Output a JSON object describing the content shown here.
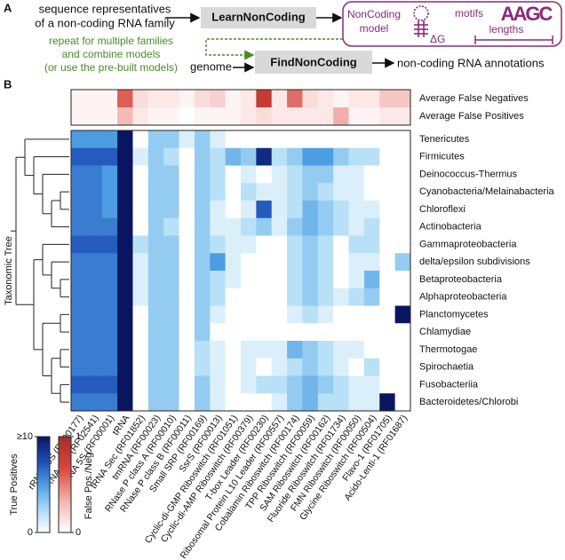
{
  "diagram": {
    "panel_a": "A",
    "panel_b": "B",
    "input_text": [
      "sequence representatives",
      "of a non-coding RNA family"
    ],
    "learn_box": "LearnNonCoding",
    "model_text": [
      "NonCoding",
      "model"
    ],
    "delta_g": "ΔG",
    "motifs": "motifs",
    "motif_letters": "AAGC",
    "lengths": "lengths",
    "repeat_text": [
      "repeat for multiple families",
      "and combine models",
      "(or use the pre-built models)"
    ],
    "genome": "genome",
    "find_box": "FindNonCoding",
    "output_text": "non-coding RNA annotations"
  },
  "chart_data": {
    "type": "heatmap",
    "y_axis_label": "Taxonomic Tree",
    "columns": [
      "rRNA 16S (RF00177)",
      "rRNA 23S (RF02541)",
      "rRNA 5S (RF00001)",
      "tRNA",
      "tRNA Sec (RF01852)",
      "tmRNA (RF00023)",
      "RNase P class A (RF00010)",
      "RNase P class B (RF00011)",
      "Small SRP (RF00169)",
      "SsrS (RF00013)",
      "Cyclic-di-GMP Riboswitch (RF01051)",
      "Cyclic-di-AMP Riboswitch (RF00379)",
      "T-box Leader (RF00230)",
      "Ribosomal Protein L10 Leader (RF00557)",
      "Cobalamin Riboswitch (RF00174)",
      "TPP Riboswitch (RF00059)",
      "SAM Riboswitch (RF00162)",
      "Fluoride Riboswitch (RF01734)",
      "FMN Riboswitch (RF00050)",
      "Glycine Riboswitch (RF00504)",
      "Flavo-1 (RF01705)",
      "Acido-Lenti-1 (RF01687)"
    ],
    "summary_rows": [
      {
        "name": "Average False Negatives",
        "values": [
          0.05,
          0.05,
          0.05,
          0.6,
          0.15,
          0.1,
          0.1,
          0.05,
          0.15,
          0.2,
          0.05,
          0.1,
          0.8,
          0.1,
          0.55,
          0.15,
          0.1,
          0.05,
          0.1,
          0.1,
          0.25,
          0.25
        ]
      },
      {
        "name": "Average False Positives",
        "values": [
          0.05,
          0.05,
          0.05,
          0.3,
          0.1,
          0.05,
          0.05,
          0,
          0.05,
          0.05,
          0.05,
          0.1,
          0.15,
          0.1,
          0.1,
          0.1,
          0.1,
          0.35,
          0.05,
          0.05,
          0.1,
          0.1
        ]
      }
    ],
    "rows": [
      "Tenericutes",
      "Firmicutes",
      "Deinococcus-Thermus",
      "Cyanobacteria/Melainabacteria",
      "Chloroflexi",
      "Actinobacteria",
      "Gammaproteobacteria",
      "delta/epsilon subdivisions",
      "Betaproteobacteria",
      "Alphaproteobacteria",
      "Planctomycetes",
      "Chlamydiae",
      "Thermotogae",
      "Spirochaetia",
      "Fusobacteriia",
      "Bacteroidetes/Chlorobi"
    ],
    "values": [
      [
        5,
        5,
        5,
        10,
        0,
        3,
        3,
        1,
        3,
        1,
        0,
        0,
        0,
        0,
        0,
        0,
        0,
        0,
        0,
        0,
        0,
        0
      ],
      [
        7,
        7,
        7,
        10,
        1,
        3,
        2,
        0,
        3,
        2,
        4,
        3,
        9,
        2,
        3,
        5,
        5,
        3,
        2,
        2,
        0,
        0
      ],
      [
        6,
        6,
        5,
        10,
        0,
        3,
        3,
        0,
        3,
        2,
        0,
        1,
        0,
        1,
        2,
        3,
        3,
        1,
        1,
        0,
        0,
        0
      ],
      [
        6,
        6,
        5,
        10,
        0,
        3,
        3,
        0,
        3,
        2,
        0,
        2,
        1,
        1,
        2,
        3,
        2,
        1,
        1,
        0,
        0,
        0
      ],
      [
        6,
        6,
        5,
        10,
        0,
        3,
        3,
        0,
        3,
        1,
        0,
        1,
        7,
        1,
        2,
        4,
        3,
        2,
        1,
        1,
        0,
        0
      ],
      [
        6,
        6,
        6,
        10,
        0,
        3,
        2,
        0,
        3,
        1,
        1,
        2,
        3,
        1,
        3,
        4,
        3,
        2,
        1,
        2,
        0,
        0
      ],
      [
        7,
        7,
        7,
        10,
        2,
        3,
        3,
        0,
        3,
        2,
        1,
        1,
        0,
        0,
        2,
        3,
        2,
        0,
        2,
        2,
        0,
        0
      ],
      [
        6,
        6,
        6,
        10,
        1,
        3,
        3,
        0,
        3,
        5,
        1,
        0,
        0,
        0,
        2,
        3,
        2,
        0,
        1,
        1,
        0,
        3
      ],
      [
        6,
        6,
        6,
        10,
        1,
        3,
        3,
        0,
        3,
        2,
        1,
        0,
        0,
        0,
        2,
        3,
        2,
        0,
        1,
        4,
        0,
        0
      ],
      [
        6,
        6,
        6,
        10,
        1,
        3,
        3,
        0,
        3,
        2,
        0,
        0,
        0,
        0,
        2,
        3,
        2,
        1,
        2,
        3,
        0,
        0
      ],
      [
        6,
        6,
        6,
        10,
        0,
        3,
        3,
        0,
        3,
        1,
        0,
        0,
        0,
        0,
        1,
        2,
        1,
        0,
        0,
        0,
        0,
        10
      ],
      [
        6,
        6,
        6,
        10,
        0,
        3,
        3,
        0,
        3,
        0,
        0,
        0,
        0,
        0,
        0,
        0,
        0,
        0,
        0,
        0,
        0,
        0
      ],
      [
        6,
        6,
        6,
        10,
        0,
        3,
        3,
        0,
        2,
        1,
        0,
        1,
        1,
        1,
        4,
        3,
        2,
        1,
        1,
        0,
        0,
        0
      ],
      [
        6,
        6,
        6,
        10,
        0,
        3,
        3,
        0,
        2,
        1,
        0,
        1,
        0,
        1,
        2,
        3,
        2,
        1,
        0,
        2,
        0,
        0
      ],
      [
        7,
        7,
        7,
        10,
        0,
        3,
        3,
        0,
        3,
        1,
        0,
        1,
        2,
        2,
        3,
        4,
        3,
        2,
        1,
        1,
        0,
        0
      ],
      [
        6,
        6,
        6,
        10,
        0,
        3,
        3,
        0,
        3,
        1,
        0,
        0,
        0,
        1,
        3,
        4,
        2,
        2,
        1,
        1,
        10,
        0
      ]
    ],
    "colorbars": [
      {
        "name": "True Positives",
        "lim": [
          0,
          10
        ],
        "ticks": [
          {
            "value": 10,
            "label": "≥10"
          },
          0
        ],
        "colors": [
          "#ffffff",
          "#a6d8f5",
          "#4d9de2",
          "#1c4bb5",
          "#0a1560"
        ]
      },
      {
        "name": "False Pos./Neg.",
        "lim": [
          0,
          1
        ],
        "ticks": [
          1,
          0
        ],
        "colors": [
          "#ffffff",
          "#f2b3ae",
          "#d9473f",
          "#a82c2a"
        ]
      }
    ]
  }
}
